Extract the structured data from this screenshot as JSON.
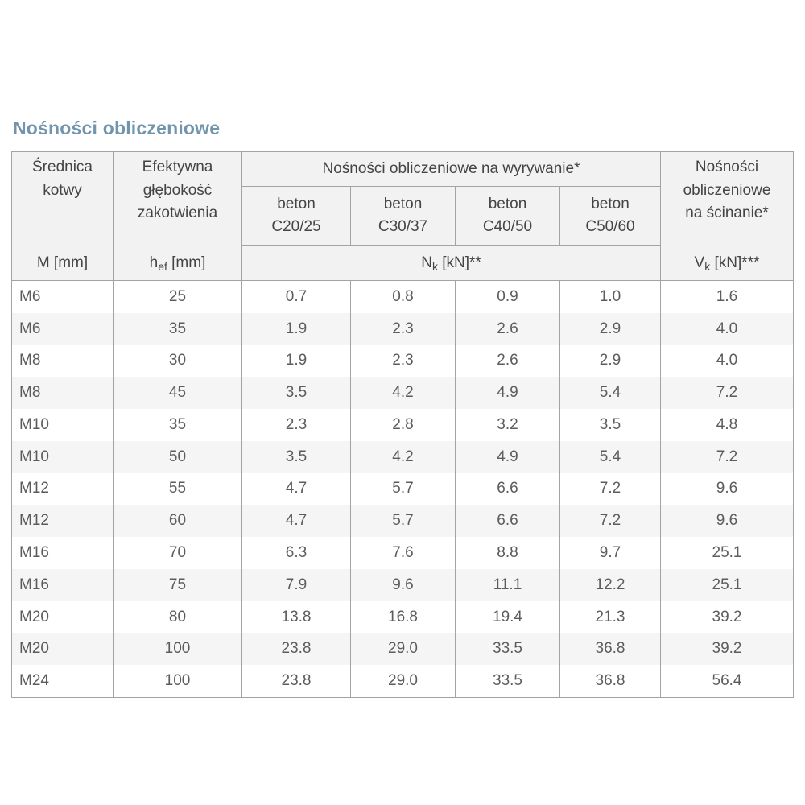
{
  "title": "Nośności obliczeniowe",
  "colors": {
    "title_accent": "#7195ac",
    "table_border": "#a3a3a3",
    "header_bg": "#f2f2f2",
    "alt_row_bg": "#f5f5f5"
  },
  "table": {
    "header": {
      "diameter": {
        "line1": "Średnica",
        "line2": "kotwy",
        "unit": "M [mm]"
      },
      "depth": {
        "line1": "Efektywna",
        "line2": "głębokość",
        "line3": "zakotwienia",
        "unit_main": "h",
        "unit_sub": "ef",
        "unit_rest": " [mm]"
      },
      "pullout_title": "Nośności obliczeniowe na wyrywanie*",
      "concrete": [
        {
          "line1": "beton",
          "line2": "C20/25"
        },
        {
          "line1": "beton",
          "line2": "C30/37"
        },
        {
          "line1": "beton",
          "line2": "C40/50"
        },
        {
          "line1": "beton",
          "line2": "C50/60"
        }
      ],
      "pullout_unit_main": "N",
      "pullout_unit_sub": "k",
      "pullout_unit_rest": " [kN]**",
      "shear": {
        "line1": "Nośności",
        "line2": "obliczeniowe",
        "line3": "na ścinanie*",
        "unit_main": "V",
        "unit_sub": "k",
        "unit_rest": " [kN]***"
      }
    },
    "rows": [
      {
        "m": "M6",
        "hef": "25",
        "c2025": "0.7",
        "c3037": "0.8",
        "c4050": "0.9",
        "c5060": "1.0",
        "vk": "1.6"
      },
      {
        "m": "M6",
        "hef": "35",
        "c2025": "1.9",
        "c3037": "2.3",
        "c4050": "2.6",
        "c5060": "2.9",
        "vk": "4.0"
      },
      {
        "m": "M8",
        "hef": "30",
        "c2025": "1.9",
        "c3037": "2.3",
        "c4050": "2.6",
        "c5060": "2.9",
        "vk": "4.0"
      },
      {
        "m": "M8",
        "hef": "45",
        "c2025": "3.5",
        "c3037": "4.2",
        "c4050": "4.9",
        "c5060": "5.4",
        "vk": "7.2"
      },
      {
        "m": "M10",
        "hef": "35",
        "c2025": "2.3",
        "c3037": "2.8",
        "c4050": "3.2",
        "c5060": "3.5",
        "vk": "4.8"
      },
      {
        "m": "M10",
        "hef": "50",
        "c2025": "3.5",
        "c3037": "4.2",
        "c4050": "4.9",
        "c5060": "5.4",
        "vk": "7.2"
      },
      {
        "m": "M12",
        "hef": "55",
        "c2025": "4.7",
        "c3037": "5.7",
        "c4050": "6.6",
        "c5060": "7.2",
        "vk": "9.6"
      },
      {
        "m": "M12",
        "hef": "60",
        "c2025": "4.7",
        "c3037": "5.7",
        "c4050": "6.6",
        "c5060": "7.2",
        "vk": "9.6"
      },
      {
        "m": "M16",
        "hef": "70",
        "c2025": "6.3",
        "c3037": "7.6",
        "c4050": "8.8",
        "c5060": "9.7",
        "vk": "25.1"
      },
      {
        "m": "M16",
        "hef": "75",
        "c2025": "7.9",
        "c3037": "9.6",
        "c4050": "11.1",
        "c5060": "12.2",
        "vk": "25.1"
      },
      {
        "m": "M20",
        "hef": "80",
        "c2025": "13.8",
        "c3037": "16.8",
        "c4050": "19.4",
        "c5060": "21.3",
        "vk": "39.2"
      },
      {
        "m": "M20",
        "hef": "100",
        "c2025": "23.8",
        "c3037": "29.0",
        "c4050": "33.5",
        "c5060": "36.8",
        "vk": "39.2"
      },
      {
        "m": "M24",
        "hef": "100",
        "c2025": "23.8",
        "c3037": "29.0",
        "c4050": "33.5",
        "c5060": "36.8",
        "vk": "56.4"
      }
    ]
  }
}
